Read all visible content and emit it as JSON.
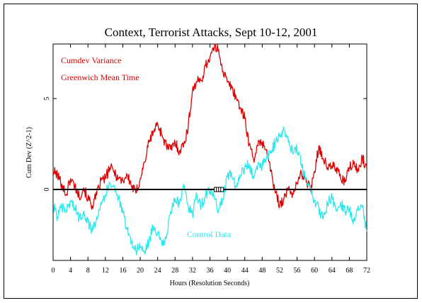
{
  "chart_data": {
    "type": "line",
    "title": "Context, Terrorist Attacks, Sept 10-12, 2001",
    "xlabel": "Hours (Resolution Seconds)",
    "ylabel": "Cum Dev (Z^2-1)",
    "xlim": [
      0,
      72
    ],
    "ylim": [
      -3.9,
      8
    ],
    "x_ticks": [
      0,
      4,
      8,
      12,
      16,
      20,
      24,
      28,
      32,
      36,
      40,
      44,
      48,
      52,
      56,
      60,
      64,
      68,
      72
    ],
    "y_ticks": [
      0,
      5
    ],
    "annotations": [
      "Cumdev Variance",
      "Greenwich Mean Time",
      "Control Data"
    ],
    "colors": {
      "main": "#e00000",
      "control": "#2de8ee",
      "zero_line": "#000000"
    },
    "series": [
      {
        "name": "Cumdev Variance",
        "color": "#e00000",
        "x": [
          0,
          1,
          2,
          3,
          4,
          5,
          6,
          7,
          8,
          9,
          10,
          11,
          12,
          13,
          14,
          15,
          16,
          17,
          18,
          19,
          20,
          21,
          22,
          23,
          24,
          25,
          26,
          27,
          28,
          29,
          30,
          31,
          32,
          33,
          34,
          35,
          36,
          37,
          38,
          39,
          40,
          41,
          42,
          43,
          44,
          45,
          46,
          47,
          48,
          49,
          50,
          51,
          52,
          53,
          54,
          55,
          56,
          57,
          58,
          59,
          60,
          61,
          62,
          63,
          64,
          65,
          66,
          67,
          68,
          69,
          70,
          71,
          72
        ],
        "values": [
          1.0,
          0.8,
          0.3,
          -0.3,
          0.6,
          0.2,
          -0.4,
          0.1,
          -0.5,
          -0.9,
          -0.3,
          0.5,
          0.6,
          1.2,
          1.0,
          0.6,
          0.5,
          0.8,
          0.2,
          -0.2,
          0.6,
          1.5,
          2.6,
          3.2,
          3.6,
          3.0,
          2.4,
          2.2,
          2.6,
          2.1,
          2.5,
          3.4,
          5.5,
          5.9,
          6.0,
          6.8,
          7.3,
          7.8,
          7.7,
          6.5,
          5.9,
          5.6,
          5.1,
          4.5,
          3.9,
          2.5,
          1.7,
          2.4,
          2.6,
          2.2,
          1.0,
          -0.2,
          -0.8,
          -0.5,
          0.0,
          -0.2,
          0.3,
          0.9,
          0.6,
          0.0,
          1.0,
          2.4,
          1.7,
          1.2,
          1.3,
          1.2,
          0.6,
          0.4,
          1.2,
          1.4,
          1.0,
          1.8,
          1.1
        ]
      },
      {
        "name": "Control Data",
        "color": "#2de8ee",
        "x": [
          0,
          1,
          2,
          3,
          4,
          5,
          6,
          7,
          8,
          9,
          10,
          11,
          12,
          13,
          14,
          15,
          16,
          17,
          18,
          19,
          20,
          21,
          22,
          23,
          24,
          25,
          26,
          27,
          28,
          29,
          30,
          31,
          32,
          33,
          34,
          35,
          36,
          37,
          38,
          39,
          40,
          41,
          42,
          43,
          44,
          45,
          46,
          47,
          48,
          49,
          50,
          51,
          52,
          53,
          54,
          55,
          56,
          57,
          58,
          59,
          60,
          61,
          62,
          63,
          64,
          65,
          66,
          67,
          68,
          69,
          70,
          71,
          72
        ],
        "values": [
          -0.8,
          -1.5,
          -1.0,
          -1.2,
          -0.6,
          -1.0,
          -1.6,
          -1.2,
          -1.8,
          -2.3,
          -1.5,
          -0.7,
          -0.3,
          0.4,
          0.2,
          -0.5,
          -1.3,
          -2.2,
          -2.9,
          -3.3,
          -3.2,
          -3.4,
          -2.9,
          -2.0,
          -2.4,
          -3.1,
          -2.7,
          -1.2,
          -0.5,
          -0.8,
          0.1,
          -0.9,
          -1.4,
          -0.3,
          -0.9,
          -0.3,
          -0.1,
          -0.5,
          -1.1,
          -0.5,
          0.7,
          0.8,
          0.2,
          0.7,
          1.2,
          1.4,
          0.6,
          1.4,
          1.3,
          1.8,
          2.1,
          2.6,
          2.9,
          3.3,
          2.6,
          2.0,
          2.2,
          1.4,
          0.6,
          0.0,
          -0.6,
          -1.1,
          -1.6,
          -0.8,
          -0.4,
          -1.2,
          -0.7,
          -1.2,
          -1.1,
          -1.7,
          -0.9,
          -1.0,
          -2.3
        ]
      }
    ]
  }
}
